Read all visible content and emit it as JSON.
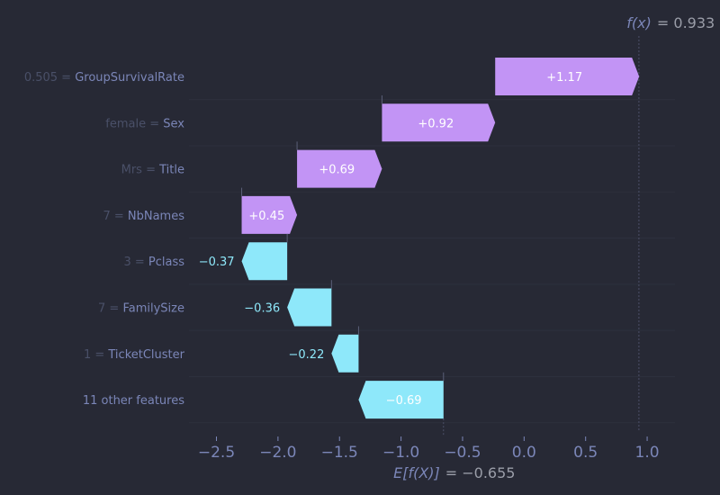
{
  "chart_data": {
    "type": "waterfall",
    "fx_label": "f(x)",
    "fx_value": "= 0.933",
    "efx_label": "E[f(X)]",
    "efx_value": "= −0.655",
    "base_value": -0.655,
    "final_value": 0.933,
    "xlim": [
      -2.65,
      1.08
    ],
    "xticks": [
      -2.5,
      -2.0,
      -1.5,
      -1.0,
      -0.5,
      0.0,
      0.5,
      1.0
    ],
    "xtick_labels": [
      "−2.5",
      "−2.0",
      "−1.5",
      "−1.0",
      "−0.5",
      "0.0",
      "0.5",
      "1.0"
    ],
    "features": [
      {
        "value_text": "0.505 =",
        "name": "GroupSurvivalRate",
        "contribution": 1.17,
        "label": "+1.17"
      },
      {
        "value_text": "female =",
        "name": "Sex",
        "contribution": 0.92,
        "label": "+0.92"
      },
      {
        "value_text": "Mrs =",
        "name": "Title",
        "contribution": 0.69,
        "label": "+0.69"
      },
      {
        "value_text": "7 =",
        "name": "NbNames",
        "contribution": 0.45,
        "label": "+0.45"
      },
      {
        "value_text": "3 =",
        "name": "Pclass",
        "contribution": -0.37,
        "label": "−0.37"
      },
      {
        "value_text": "7 =",
        "name": "FamilySize",
        "contribution": -0.36,
        "label": "−0.36"
      },
      {
        "value_text": "1 =",
        "name": "TicketCluster",
        "contribution": -0.22,
        "label": "−0.22"
      },
      {
        "value_text": "",
        "name": "11 other features",
        "contribution": -0.69,
        "label": "−0.69"
      }
    ]
  },
  "colors": {
    "background": "#272935",
    "positive": "#c294f5",
    "negative": "#8ee8fa",
    "feature_name": "#7b86b8",
    "feature_value": "#4a5068",
    "axis_text": "#7b86b8",
    "value_text": "#9a9da8"
  }
}
